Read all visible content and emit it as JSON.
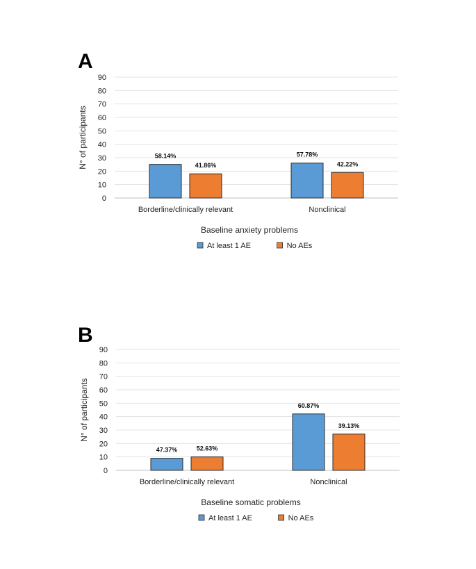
{
  "chart_data": [
    {
      "type": "bar",
      "panel_label": "A",
      "title": "",
      "xlabel": "Baseline anxiety problems",
      "ylabel": "N° of participants",
      "ylim": [
        0,
        90
      ],
      "yticks": [
        0,
        10,
        20,
        30,
        40,
        50,
        60,
        70,
        80,
        90
      ],
      "grid": true,
      "categories": [
        "Borderline/clinically relevant",
        "Nonclinical"
      ],
      "series": [
        {
          "name": "At least 1 AE",
          "color": "#5b9bd5",
          "values": [
            25,
            26
          ],
          "labels": [
            "58.14%",
            "57.78%"
          ]
        },
        {
          "name": "No AEs",
          "color": "#ed7d31",
          "values": [
            18,
            19
          ],
          "labels": [
            "41.86%",
            "42.22%"
          ]
        }
      ],
      "legend": "bottom"
    },
    {
      "type": "bar",
      "panel_label": "B",
      "title": "",
      "xlabel": "Baseline somatic problems",
      "ylabel": "N° of participants",
      "ylim": [
        0,
        90
      ],
      "yticks": [
        0,
        10,
        20,
        30,
        40,
        50,
        60,
        70,
        80,
        90
      ],
      "grid": true,
      "categories": [
        "Borderline/clinically relevant",
        "Nonclinical"
      ],
      "series": [
        {
          "name": "At least 1 AE",
          "color": "#5b9bd5",
          "values": [
            9,
            42
          ],
          "labels": [
            "47.37%",
            "60.87%"
          ]
        },
        {
          "name": "No AEs",
          "color": "#ed7d31",
          "values": [
            10,
            27
          ],
          "labels": [
            "52.63%",
            "39.13%"
          ]
        }
      ],
      "legend": "bottom"
    }
  ]
}
